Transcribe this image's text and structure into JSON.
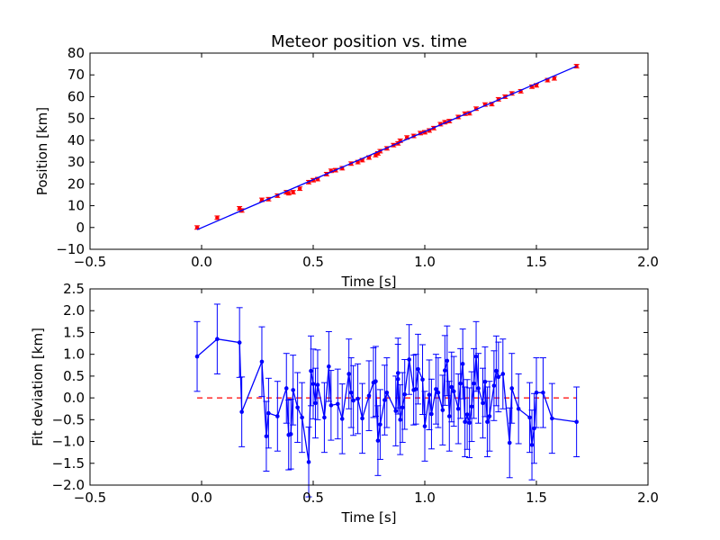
{
  "chart_data": [
    {
      "type": "scatter",
      "title": "Meteor position vs. time",
      "xlabel": "Time [s]",
      "ylabel": "Position [km]",
      "xlim": [
        -0.5,
        2.0
      ],
      "ylim": [
        -10,
        80
      ],
      "xticks": [
        -0.5,
        0.0,
        0.5,
        1.0,
        1.5,
        2.0
      ],
      "xtick_labels": [
        "−0.5",
        "0.0",
        "0.5",
        "1.0",
        "1.5",
        "2.0"
      ],
      "yticks": [
        -10,
        0,
        10,
        20,
        30,
        40,
        50,
        60,
        70,
        80
      ],
      "ytick_labels": [
        "−10",
        "0",
        "10",
        "20",
        "30",
        "40",
        "50",
        "60",
        "70",
        "80"
      ],
      "grid": false,
      "colors": {
        "fit": "#0000ff",
        "data": "#ff0000",
        "errorbar": "#ff0000"
      },
      "fit_line": {
        "x": [
          -0.02,
          1.68
        ],
        "y": [
          -1,
          74
        ]
      },
      "series": [
        {
          "style": "points-with-errorbars",
          "yerr": 0.8,
          "points": [
            [
              -0.02,
              0.0
            ],
            [
              0.07,
              4.5
            ],
            [
              0.17,
              8.8
            ],
            [
              0.18,
              7.8
            ],
            [
              0.27,
              12.7
            ],
            [
              0.3,
              13.0
            ],
            [
              0.34,
              14.6
            ],
            [
              0.38,
              16.2
            ],
            [
              0.39,
              15.7
            ],
            [
              0.41,
              16.2
            ],
            [
              0.44,
              17.8
            ],
            [
              0.48,
              20.8
            ],
            [
              0.5,
              21.7
            ],
            [
              0.52,
              22.2
            ],
            [
              0.56,
              24.5
            ],
            [
              0.58,
              26.0
            ],
            [
              0.6,
              26.3
            ],
            [
              0.63,
              27.2
            ],
            [
              0.67,
              29.3
            ],
            [
              0.7,
              30.0
            ],
            [
              0.72,
              30.9
            ],
            [
              0.75,
              32.1
            ],
            [
              0.78,
              33.2
            ],
            [
              0.79,
              34.0
            ],
            [
              0.8,
              35.0
            ],
            [
              0.83,
              36.3
            ],
            [
              0.86,
              37.8
            ],
            [
              0.88,
              38.6
            ],
            [
              0.89,
              39.8
            ],
            [
              0.92,
              41.3
            ],
            [
              0.95,
              42.0
            ],
            [
              0.98,
              43.3
            ],
            [
              1.0,
              43.7
            ],
            [
              1.02,
              44.5
            ],
            [
              1.04,
              45.6
            ],
            [
              1.07,
              47.4
            ],
            [
              1.09,
              48.3
            ],
            [
              1.11,
              48.8
            ],
            [
              1.15,
              50.7
            ],
            [
              1.18,
              52.2
            ],
            [
              1.2,
              52.4
            ],
            [
              1.23,
              54.5
            ],
            [
              1.27,
              56.4
            ],
            [
              1.3,
              56.6
            ],
            [
              1.33,
              58.8
            ],
            [
              1.36,
              60.0
            ],
            [
              1.39,
              61.5
            ],
            [
              1.43,
              62.5
            ],
            [
              1.48,
              64.6
            ],
            [
              1.5,
              65.2
            ],
            [
              1.55,
              67.6
            ],
            [
              1.58,
              68.4
            ],
            [
              1.68,
              74.0
            ]
          ]
        }
      ]
    },
    {
      "type": "line",
      "xlabel": "Time [s]",
      "ylabel": "Fit deviation [km]",
      "xlim": [
        -0.5,
        2.0
      ],
      "ylim": [
        -2.0,
        2.5
      ],
      "xticks": [
        -0.5,
        0.0,
        0.5,
        1.0,
        1.5,
        2.0
      ],
      "xtick_labels": [
        "−0.5",
        "0.0",
        "0.5",
        "1.0",
        "1.5",
        "2.0"
      ],
      "yticks": [
        -2.0,
        -1.5,
        -1.0,
        -0.5,
        0.0,
        0.5,
        1.0,
        1.5,
        2.0,
        2.5
      ],
      "ytick_labels": [
        "−2.0",
        "−1.5",
        "−1.0",
        "−0.5",
        "0.0",
        "0.5",
        "1.0",
        "1.5",
        "2.0",
        "2.5"
      ],
      "grid": false,
      "colors": {
        "data": "#0000ff",
        "zero_line": "#ff0000"
      },
      "zero_line": {
        "y": 0.0,
        "x": [
          -0.02,
          1.68
        ],
        "style": "dashed"
      },
      "series": [
        {
          "style": "line-markers-errorbars",
          "yerr": 0.8,
          "points": [
            [
              -0.02,
              0.95
            ],
            [
              0.07,
              1.35
            ],
            [
              0.17,
              1.27
            ],
            [
              0.18,
              -0.32
            ],
            [
              0.27,
              0.83
            ],
            [
              0.29,
              -0.88
            ],
            [
              0.3,
              -0.35
            ],
            [
              0.34,
              -0.42
            ],
            [
              0.38,
              0.22
            ],
            [
              0.39,
              -0.85
            ],
            [
              0.4,
              -0.83
            ],
            [
              0.41,
              0.18
            ],
            [
              0.43,
              -0.22
            ],
            [
              0.45,
              -0.45
            ],
            [
              0.48,
              -1.47
            ],
            [
              0.49,
              0.62
            ],
            [
              0.5,
              0.32
            ],
            [
              0.51,
              -0.12
            ],
            [
              0.52,
              0.3
            ],
            [
              0.55,
              -0.45
            ],
            [
              0.57,
              0.72
            ],
            [
              0.58,
              -0.17
            ],
            [
              0.61,
              -0.14
            ],
            [
              0.63,
              -0.48
            ],
            [
              0.66,
              0.55
            ],
            [
              0.67,
              0.12
            ],
            [
              0.68,
              -0.06
            ],
            [
              0.7,
              -0.02
            ],
            [
              0.72,
              -0.47
            ],
            [
              0.75,
              0.05
            ],
            [
              0.77,
              0.35
            ],
            [
              0.78,
              0.38
            ],
            [
              0.79,
              -0.98
            ],
            [
              0.8,
              -0.61
            ],
            [
              0.82,
              -0.05
            ],
            [
              0.83,
              0.12
            ],
            [
              0.87,
              -0.3
            ],
            [
              0.88,
              0.57
            ],
            [
              0.88,
              0.43
            ],
            [
              0.89,
              -0.5
            ],
            [
              0.9,
              -0.22
            ],
            [
              0.91,
              0.08
            ],
            [
              0.93,
              0.88
            ],
            [
              0.95,
              0.18
            ],
            [
              0.96,
              0.2
            ],
            [
              0.97,
              0.66
            ],
            [
              0.99,
              0.42
            ],
            [
              1.0,
              -0.65
            ],
            [
              1.02,
              0.07
            ],
            [
              1.03,
              -0.37
            ],
            [
              1.05,
              0.2
            ],
            [
              1.06,
              0.12
            ],
            [
              1.08,
              -0.28
            ],
            [
              1.09,
              0.63
            ],
            [
              1.1,
              0.85
            ],
            [
              1.11,
              -0.42
            ],
            [
              1.12,
              0.25
            ],
            [
              1.13,
              0.15
            ],
            [
              1.15,
              -0.25
            ],
            [
              1.16,
              0.33
            ],
            [
              1.17,
              0.78
            ],
            [
              1.18,
              -0.55
            ],
            [
              1.19,
              -0.38
            ],
            [
              1.2,
              -0.57
            ],
            [
              1.21,
              -0.2
            ],
            [
              1.22,
              0.33
            ],
            [
              1.23,
              0.95
            ],
            [
              1.24,
              0.22
            ],
            [
              1.26,
              -0.12
            ],
            [
              1.27,
              0.37
            ],
            [
              1.28,
              -0.55
            ],
            [
              1.29,
              -0.42
            ],
            [
              1.31,
              0.28
            ],
            [
              1.32,
              0.62
            ],
            [
              1.33,
              0.48
            ],
            [
              1.35,
              0.55
            ],
            [
              1.38,
              -1.03
            ],
            [
              1.39,
              0.22
            ],
            [
              1.42,
              -0.25
            ],
            [
              1.47,
              -0.45
            ],
            [
              1.48,
              -1.08
            ],
            [
              1.49,
              -0.7
            ],
            [
              1.5,
              0.12
            ],
            [
              1.53,
              0.12
            ],
            [
              1.57,
              -0.47
            ],
            [
              1.68,
              -0.55
            ]
          ]
        }
      ]
    }
  ]
}
